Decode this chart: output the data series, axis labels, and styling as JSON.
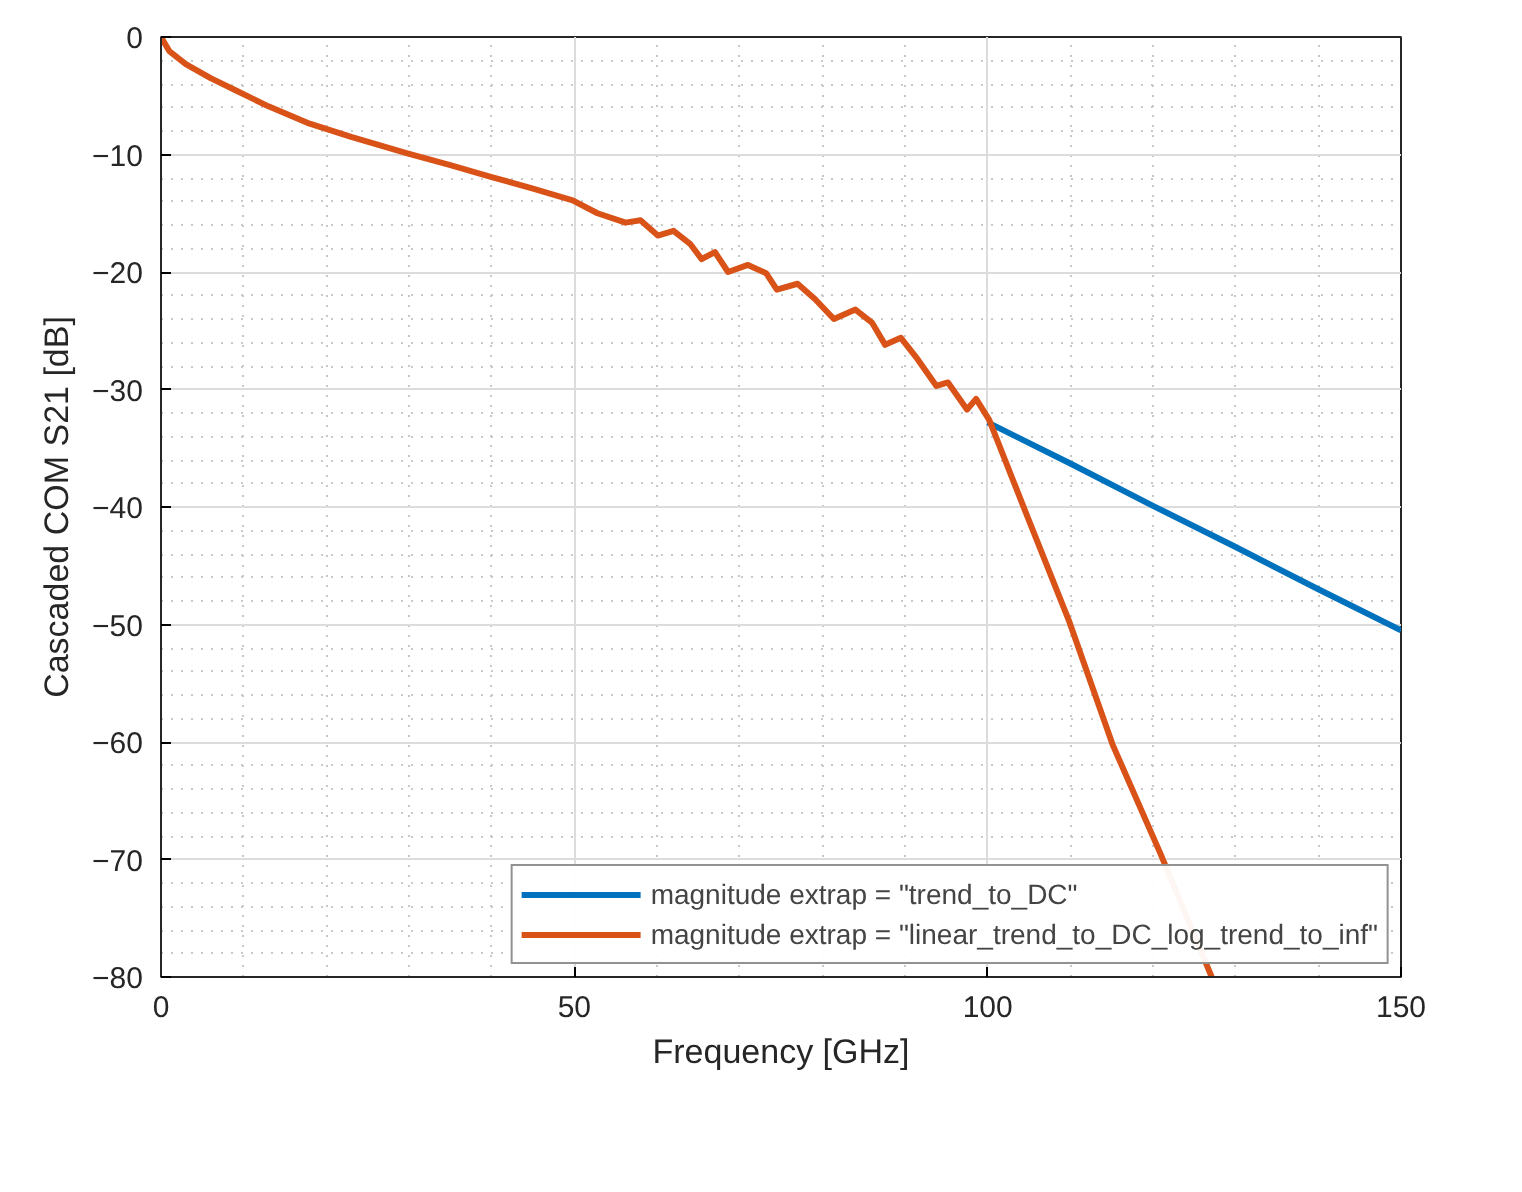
{
  "chart_data": {
    "type": "line",
    "xlabel": "Frequency [GHz]",
    "ylabel": "Cascaded COM S21 [dB]",
    "xlim": [
      0,
      150
    ],
    "ylim": [
      -80,
      0
    ],
    "xticks": [
      0,
      50,
      100,
      150
    ],
    "yticks": [
      -80,
      -70,
      -60,
      -50,
      -40,
      -30,
      -20,
      -10,
      0
    ],
    "grid": true,
    "legend": "bottom right",
    "line_style": "solid",
    "series": [
      {
        "name": "magnitude extrap = \"trend_to_DC\"",
        "color": "#0072bd",
        "x": [
          100,
          110,
          120,
          130,
          140,
          150
        ],
        "values": [
          -32.8,
          -36.3,
          -39.9,
          -43.4,
          -47.0,
          -50.5
        ]
      },
      {
        "name": "magnitude extrap = \"linear_trend_to_DC_log_trend_to_inf\"",
        "color": "#d95319",
        "x": [
          0,
          1,
          3,
          6,
          9.2,
          13,
          17.7,
          23,
          29.8,
          35,
          39.9,
          45,
          49.8,
          52.8,
          56.2,
          58,
          60.1,
          62,
          64,
          65.4,
          67,
          68.6,
          71,
          73.2,
          74.5,
          77,
          79.1,
          81.4,
          84,
          86,
          87.6,
          89.5,
          91.5,
          93.8,
          95.2,
          97.5,
          98.6,
          100.2,
          104.4,
          109.9,
          115.1,
          120.9,
          127.1
        ],
        "values": [
          0,
          -1.2,
          -2.3,
          -3.5,
          -4.6,
          -5.9,
          -7.3,
          -8.5,
          -9.9,
          -10.9,
          -11.9,
          -12.9,
          -13.9,
          -15.0,
          -15.8,
          -15.6,
          -16.9,
          -16.5,
          -17.6,
          -18.9,
          -18.3,
          -20.0,
          -19.4,
          -20.1,
          -21.5,
          -21.0,
          -22.3,
          -24.0,
          -23.2,
          -24.3,
          -26.2,
          -25.6,
          -27.4,
          -29.7,
          -29.4,
          -31.7,
          -30.8,
          -32.6,
          -40.1,
          -49.8,
          -60.2,
          -69.5,
          -80.0
        ]
      }
    ]
  }
}
